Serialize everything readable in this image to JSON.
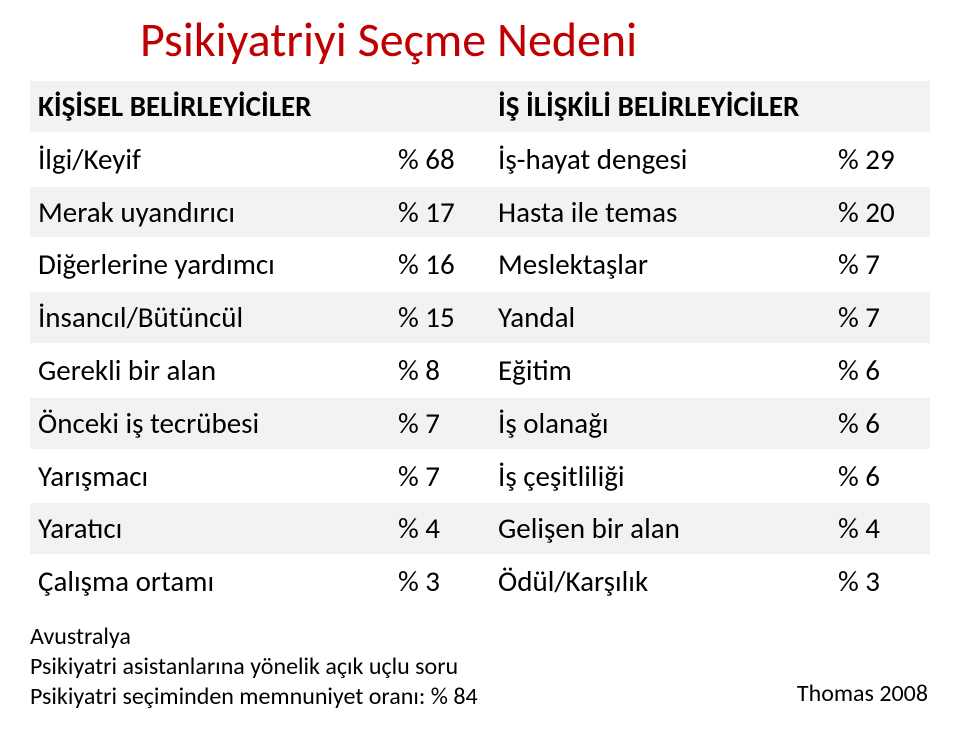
{
  "title": "Psikiyatriyi Seçme Nedeni",
  "colors": {
    "title": "#c00000",
    "row_alt_bg": "#f2f2f2",
    "row_bg": "#ffffff",
    "text": "#000000"
  },
  "table": {
    "header": {
      "left": "KİŞİSEL BELİRLEYİCİLER",
      "right": "İŞ İLİŞKİLİ BELİRLEYİCİLER"
    },
    "rows": [
      {
        "l_label": "İlgi/Keyif",
        "l_pct": "% 68",
        "r_label": "İş-hayat dengesi",
        "r_pct": "% 29"
      },
      {
        "l_label": "Merak uyandırıcı",
        "l_pct": "% 17",
        "r_label": "Hasta ile temas",
        "r_pct": "% 20"
      },
      {
        "l_label": "Diğerlerine yardımcı",
        "l_pct": "% 16",
        "r_label": "Meslektaşlar",
        "r_pct": "% 7"
      },
      {
        "l_label": "İnsancıl/Bütüncül",
        "l_pct": "% 15",
        "r_label": "Yandal",
        "r_pct": "% 7"
      },
      {
        "l_label": "Gerekli bir alan",
        "l_pct": "% 8",
        "r_label": "Eğitim",
        "r_pct": "% 6"
      },
      {
        "l_label": "Önceki iş tecrübesi",
        "l_pct": "% 7",
        "r_label": "İş olanağı",
        "r_pct": "% 6"
      },
      {
        "l_label": "Yarışmacı",
        "l_pct": "% 7",
        "r_label": "İş çeşitliliği",
        "r_pct": "% 6"
      },
      {
        "l_label": "Yaratıcı",
        "l_pct": "% 4",
        "r_label": "Gelişen bir alan",
        "r_pct": "% 4"
      },
      {
        "l_label": "Çalışma ortamı",
        "l_pct": "% 3",
        "r_label": "Ödül/Karşılık",
        "r_pct": "% 3"
      }
    ]
  },
  "footnote": {
    "line1": "Avustralya",
    "line2": "Psikiyatri asistanlarına yönelik açık uçlu soru",
    "line3": "Psikiyatri seçiminden memnuniyet oranı: % 84"
  },
  "citation": "Thomas 2008"
}
